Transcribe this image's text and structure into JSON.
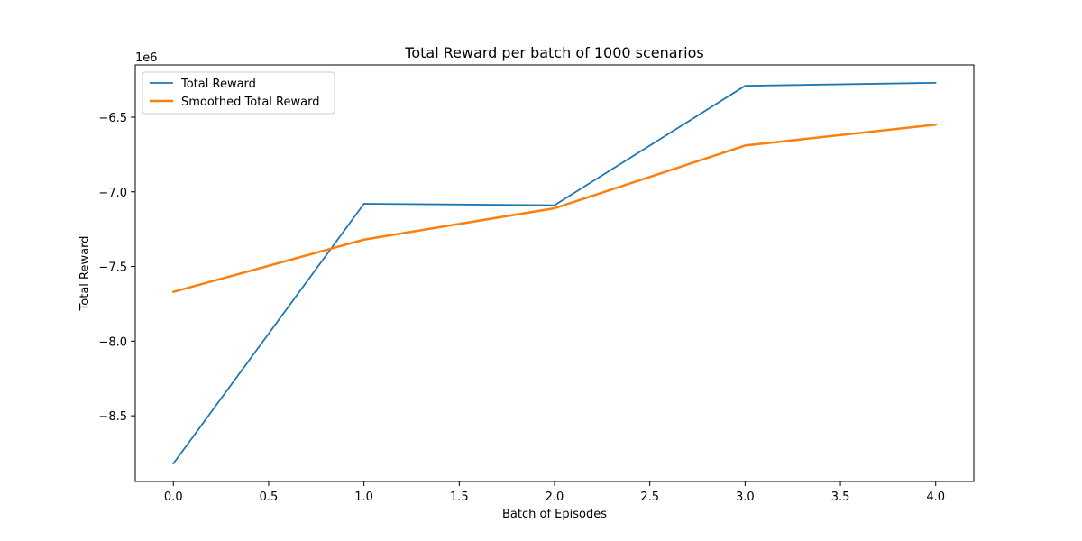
{
  "chart_data": {
    "type": "line",
    "title": "Total Reward per batch of 1000 scenarios",
    "xlabel": "Batch of Episodes",
    "ylabel": "Total Reward",
    "y_offset_label": "1e6",
    "xlim": [
      -0.2,
      4.2
    ],
    "ylim": [
      -8.94,
      -6.15
    ],
    "x_ticks": [
      0.0,
      0.5,
      1.0,
      1.5,
      2.0,
      2.5,
      3.0,
      3.5,
      4.0
    ],
    "x_tick_labels": [
      "0.0",
      "0.5",
      "1.0",
      "1.5",
      "2.0",
      "2.5",
      "3.0",
      "3.5",
      "4.0"
    ],
    "y_ticks": [
      -8.5,
      -8.0,
      -7.5,
      -7.0,
      -6.5
    ],
    "y_tick_labels": [
      "−8.5",
      "−8.0",
      "−7.5",
      "−7.0",
      "−6.5"
    ],
    "x": [
      0,
      1,
      2,
      3,
      4
    ],
    "series": [
      {
        "name": "Total Reward",
        "color": "#1f77b4",
        "values": [
          -8.82,
          -7.08,
          -7.09,
          -6.29,
          -6.27
        ]
      },
      {
        "name": "Smoothed Total Reward",
        "color": "#ff7f0e",
        "values": [
          -7.67,
          -7.32,
          -7.11,
          -6.69,
          -6.55
        ]
      }
    ],
    "legend_position": "top-left",
    "grid": false
  }
}
